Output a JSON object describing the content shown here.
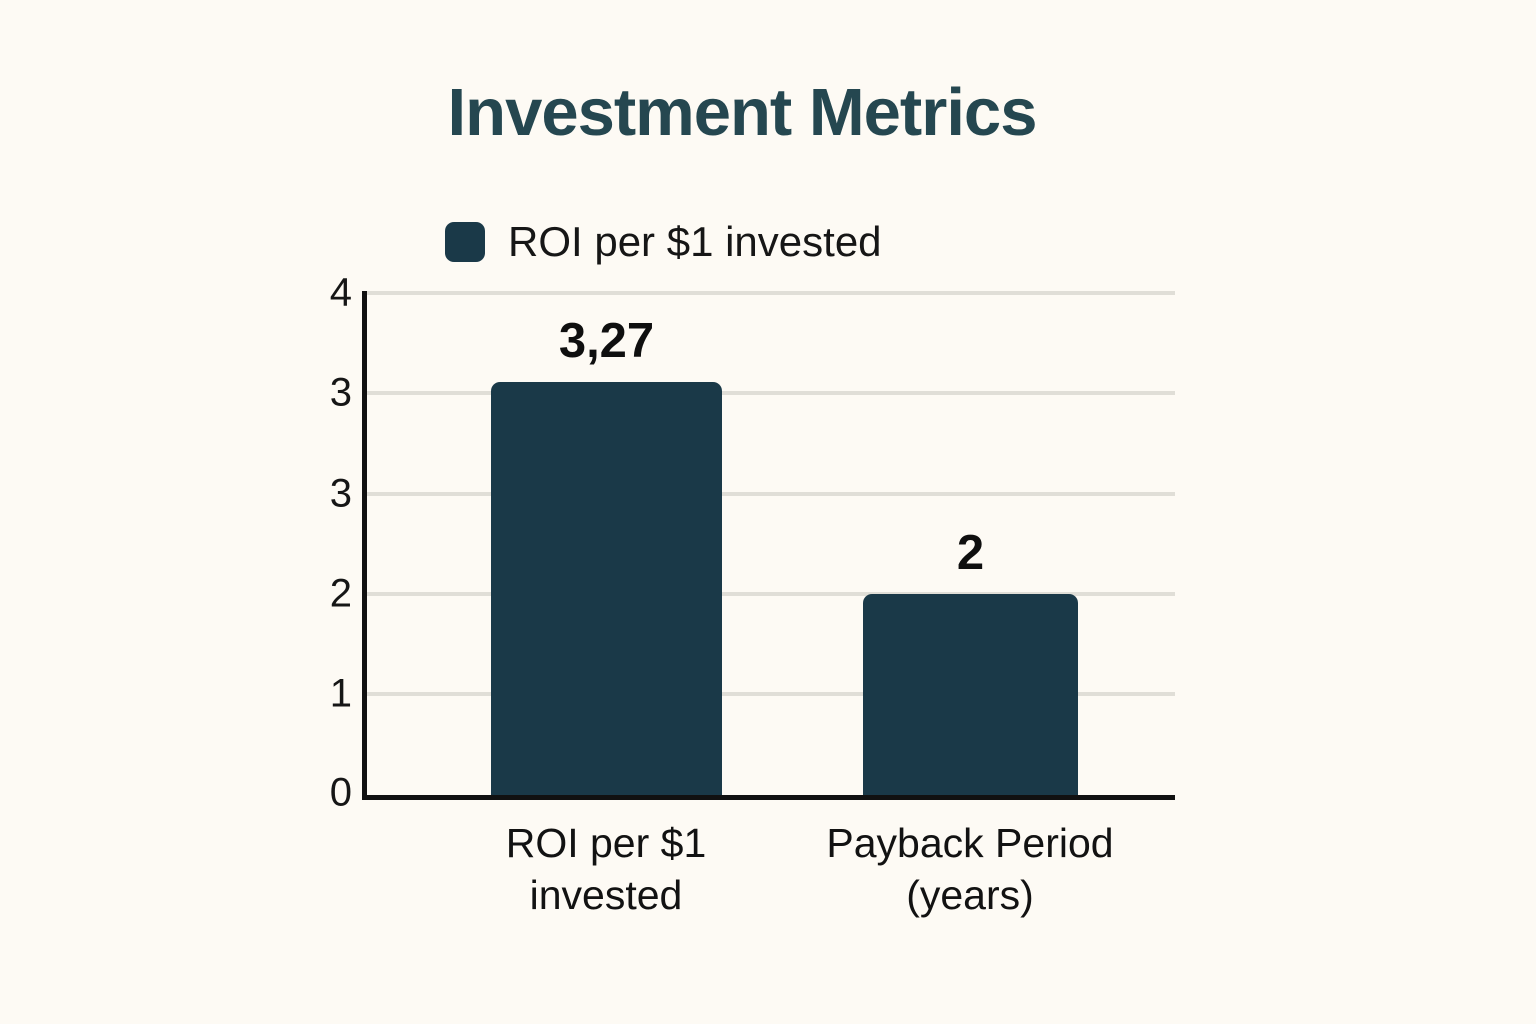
{
  "chart_data": {
    "type": "bar",
    "title": "Investment Metrics",
    "legend": [
      {
        "label": "ROI per $1 invested",
        "color": "#1a3948"
      }
    ],
    "legend_position": "top-left-above-plot",
    "categories": [
      "ROI per $1 invested",
      "Payback Period (years)"
    ],
    "values": [
      3.27,
      2
    ],
    "bars": [
      {
        "category": "ROI per $1 invested",
        "value": 3.27,
        "value_label": "3,27"
      },
      {
        "category": "Payback Period (years)",
        "value": 2,
        "value_label": "2"
      }
    ],
    "x_tick_lines": [
      [
        "ROI per $1",
        "invested"
      ],
      [
        "Payback Period",
        "(years)"
      ]
    ],
    "y_tick_labels": [
      "4",
      "3",
      "3",
      "2",
      "1",
      "0"
    ],
    "ylim": [
      0,
      4
    ],
    "grid": true,
    "xlabel": "",
    "ylabel": "",
    "colors": {
      "bar": "#1a3948",
      "title": "#254750",
      "axis": "#111111",
      "gridline": "#e0ded7",
      "background": "#fdfaf4"
    }
  }
}
